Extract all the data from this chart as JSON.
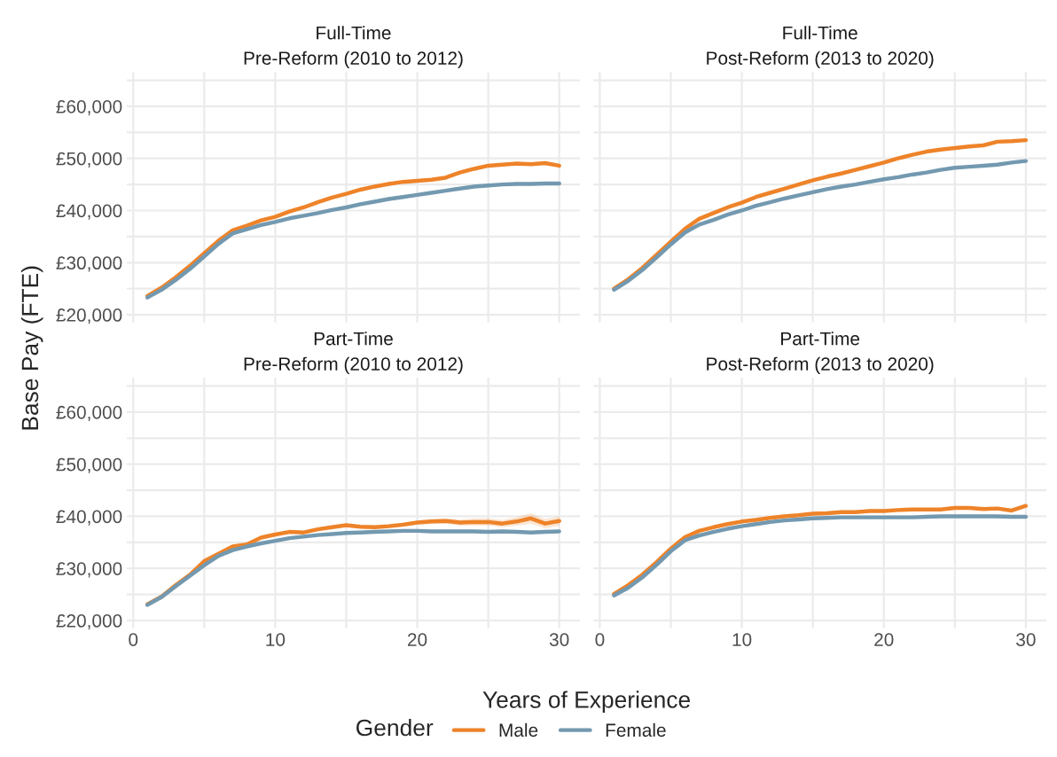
{
  "chart_data": [
    {
      "type": "line",
      "title": "Full-Time\nPre-Reform (2010 to 2012)",
      "ylabel": "Base Pay (FTE)",
      "tick_labels": "y",
      "grid": true,
      "legend": "bottom",
      "legend_title": "Gender",
      "xlim": [
        -0.45,
        31.45
      ],
      "ylim": [
        18500,
        66600
      ],
      "xticks": [
        0,
        {
          "value": 5,
          "label": null
        },
        10,
        {
          "value": 15,
          "label": null
        },
        20,
        {
          "value": 25,
          "label": null
        },
        30
      ],
      "yticks": [
        {
          "value": 20000,
          "label": "£20,000"
        },
        {
          "value": 25000,
          "label": null
        },
        {
          "value": 30000,
          "label": "£30,000"
        },
        {
          "value": 35000,
          "label": null
        },
        {
          "value": 40000,
          "label": "£40,000"
        },
        {
          "value": 45000,
          "label": null
        },
        {
          "value": 50000,
          "label": "£50,000"
        },
        {
          "value": 55000,
          "label": null
        },
        {
          "value": 60000,
          "label": "£60,000"
        },
        {
          "value": 65000,
          "label": null
        }
      ],
      "x": [
        1,
        2,
        3,
        4,
        5,
        6,
        7,
        8,
        9,
        10,
        11,
        12,
        13,
        14,
        15,
        16,
        17,
        18,
        19,
        20,
        21,
        22,
        23,
        24,
        25,
        26,
        27,
        28,
        29,
        30
      ],
      "series": [
        {
          "name": "Male",
          "color": "#ee8329",
          "values": [
            23600,
            25200,
            27200,
            29400,
            31800,
            34200,
            36200,
            37100,
            38100,
            38800,
            39800,
            40600,
            41600,
            42500,
            43200,
            44000,
            44600,
            45100,
            45500,
            45700,
            45900,
            46300,
            47300,
            48000,
            48600,
            48800,
            49000,
            48900,
            49100,
            48600
          ]
        },
        {
          "name": "Female",
          "color": "#7399b0",
          "values": [
            23300,
            24800,
            26700,
            28800,
            31200,
            33600,
            35600,
            36400,
            37200,
            37800,
            38500,
            39000,
            39500,
            40100,
            40600,
            41200,
            41700,
            42200,
            42600,
            43000,
            43400,
            43800,
            44200,
            44600,
            44800,
            45000,
            45100,
            45100,
            45200,
            45200
          ]
        }
      ]
    },
    {
      "type": "line",
      "title": "Full-Time\nPost-Reform (2013 to 2020)",
      "tick_labels": false,
      "grid": true,
      "xlim": [
        -0.45,
        31.45
      ],
      "ylim": [
        18500,
        66600
      ],
      "xticks": [
        0,
        5,
        10,
        15,
        20,
        25,
        30
      ],
      "yticks": [
        20000,
        25000,
        30000,
        35000,
        40000,
        45000,
        50000,
        55000,
        60000,
        65000
      ],
      "x": [
        1,
        2,
        3,
        4,
        5,
        6,
        7,
        8,
        9,
        10,
        11,
        12,
        13,
        14,
        15,
        16,
        17,
        18,
        19,
        20,
        21,
        22,
        23,
        24,
        25,
        26,
        27,
        28,
        29,
        30
      ],
      "series": [
        {
          "color": "#ee8329",
          "values": [
            25000,
            26800,
            29000,
            31500,
            34000,
            36500,
            38400,
            39500,
            40600,
            41500,
            42600,
            43400,
            44200,
            45000,
            45800,
            46500,
            47100,
            47800,
            48500,
            49200,
            50000,
            50700,
            51300,
            51700,
            52000,
            52300,
            52500,
            53200,
            53300,
            53500
          ]
        },
        {
          "color": "#7399b0",
          "values": [
            24800,
            26500,
            28600,
            31000,
            33500,
            35800,
            37300,
            38200,
            39200,
            40000,
            40900,
            41600,
            42300,
            42900,
            43500,
            44100,
            44600,
            45000,
            45500,
            46000,
            46400,
            46900,
            47300,
            47800,
            48200,
            48400,
            48600,
            48800,
            49200,
            49500
          ]
        }
      ]
    },
    {
      "type": "line",
      "title": "Part-Time\nPre-Reform (2010 to 2012)",
      "xlabel": "Years of Experience",
      "grid": true,
      "xlim": [
        -0.45,
        31.45
      ],
      "ylim": [
        18500,
        66600
      ],
      "xticks": [
        0,
        {
          "value": 5,
          "label": null
        },
        10,
        {
          "value": 15,
          "label": null
        },
        20,
        {
          "value": 25,
          "label": null
        },
        30
      ],
      "yticks": [
        {
          "value": 20000,
          "label": "£20,000"
        },
        {
          "value": 25000,
          "label": null
        },
        {
          "value": 30000,
          "label": "£30,000"
        },
        {
          "value": 35000,
          "label": null
        },
        {
          "value": 40000,
          "label": "£40,000"
        },
        {
          "value": 45000,
          "label": null
        },
        {
          "value": 50000,
          "label": "£50,000"
        },
        {
          "value": 55000,
          "label": null
        },
        {
          "value": 60000,
          "label": "£60,000"
        },
        {
          "value": 65000,
          "label": null
        }
      ],
      "x": [
        1,
        2,
        3,
        4,
        5,
        6,
        7,
        8,
        9,
        10,
        11,
        12,
        13,
        14,
        15,
        16,
        17,
        18,
        19,
        20,
        21,
        22,
        23,
        24,
        25,
        26,
        27,
        28,
        29,
        30
      ],
      "series": [
        {
          "color": "#ee8329",
          "values": [
            23100,
            24600,
            26800,
            28800,
            31400,
            32800,
            34200,
            34600,
            35900,
            36500,
            37000,
            36900,
            37500,
            37900,
            38300,
            38000,
            37900,
            38100,
            38400,
            38800,
            39000,
            39100,
            38800,
            38900,
            38900,
            38600,
            39000,
            39600,
            38600,
            39100
          ],
          "lower": [
            22900,
            24400,
            26600,
            28600,
            31200,
            32600,
            34000,
            34400,
            35700,
            36300,
            36700,
            36600,
            37200,
            37600,
            38000,
            37700,
            37600,
            37700,
            38000,
            38400,
            38500,
            38600,
            38200,
            38200,
            38200,
            37900,
            38200,
            38600,
            37700,
            38200
          ],
          "upper": [
            23300,
            24800,
            27000,
            29000,
            31600,
            33000,
            34400,
            34800,
            36100,
            36700,
            37300,
            37200,
            37800,
            38200,
            38600,
            38300,
            38200,
            38500,
            38800,
            39200,
            39500,
            39600,
            39400,
            39600,
            39600,
            39300,
            39800,
            40600,
            39500,
            40000
          ]
        },
        {
          "color": "#7399b0",
          "values": [
            23000,
            24500,
            26600,
            28600,
            30600,
            32400,
            33500,
            34200,
            34800,
            35300,
            35800,
            36100,
            36400,
            36600,
            36800,
            36900,
            37000,
            37100,
            37200,
            37200,
            37100,
            37100,
            37100,
            37100,
            37000,
            37100,
            37000,
            36900,
            37000,
            37100
          ]
        }
      ]
    },
    {
      "type": "line",
      "title": "Part-Time\nPost-Reform (2013 to 2020)",
      "tick_labels": "x",
      "grid": true,
      "xlim": [
        -0.45,
        31.45
      ],
      "ylim": [
        18500,
        66600
      ],
      "xticks": [
        0,
        {
          "value": 5,
          "label": null
        },
        10,
        {
          "value": 15,
          "label": null
        },
        20,
        {
          "value": 25,
          "label": null
        },
        30
      ],
      "yticks": [
        20000,
        25000,
        30000,
        35000,
        40000,
        45000,
        50000,
        55000,
        60000,
        65000
      ],
      "x": [
        1,
        2,
        3,
        4,
        5,
        6,
        7,
        8,
        9,
        10,
        11,
        12,
        13,
        14,
        15,
        16,
        17,
        18,
        19,
        20,
        21,
        22,
        23,
        24,
        25,
        26,
        27,
        28,
        29,
        30
      ],
      "series": [
        {
          "color": "#ee8329",
          "values": [
            25100,
            26800,
            28800,
            31200,
            33800,
            36000,
            37200,
            37900,
            38500,
            39000,
            39300,
            39700,
            40000,
            40200,
            40500,
            40600,
            40800,
            40800,
            41000,
            41000,
            41200,
            41300,
            41300,
            41300,
            41600,
            41600,
            41400,
            41500,
            41100,
            42000
          ]
        },
        {
          "color": "#7399b0",
          "values": [
            24800,
            26300,
            28300,
            30700,
            33300,
            35400,
            36300,
            37000,
            37600,
            38100,
            38500,
            38900,
            39200,
            39400,
            39600,
            39700,
            39800,
            39800,
            39800,
            39800,
            39800,
            39800,
            39900,
            40000,
            40000,
            40000,
            40000,
            40000,
            39900,
            39900
          ]
        }
      ]
    }
  ]
}
